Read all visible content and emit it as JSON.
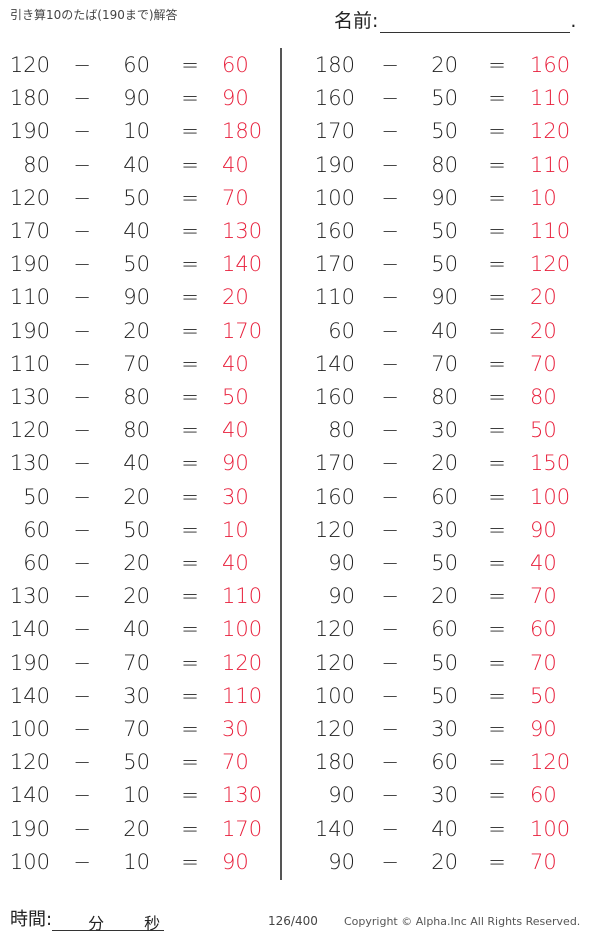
{
  "header": {
    "title": "引き算10のたば(190まで)解答",
    "name_label": "名前:",
    "name_end": "."
  },
  "operator": "−",
  "equals": "=",
  "colors": {
    "answer": "#e8203c",
    "text": "#222222"
  },
  "left": [
    [
      "120",
      "60",
      "60"
    ],
    [
      "180",
      "90",
      "90"
    ],
    [
      "190",
      "10",
      "180"
    ],
    [
      "80",
      "40",
      "40"
    ],
    [
      "120",
      "50",
      "70"
    ],
    [
      "170",
      "40",
      "130"
    ],
    [
      "190",
      "50",
      "140"
    ],
    [
      "110",
      "90",
      "20"
    ],
    [
      "190",
      "20",
      "170"
    ],
    [
      "110",
      "70",
      "40"
    ],
    [
      "130",
      "80",
      "50"
    ],
    [
      "120",
      "80",
      "40"
    ],
    [
      "130",
      "40",
      "90"
    ],
    [
      "50",
      "20",
      "30"
    ],
    [
      "60",
      "50",
      "10"
    ],
    [
      "60",
      "20",
      "40"
    ],
    [
      "130",
      "20",
      "110"
    ],
    [
      "140",
      "40",
      "100"
    ],
    [
      "190",
      "70",
      "120"
    ],
    [
      "140",
      "30",
      "110"
    ],
    [
      "100",
      "70",
      "30"
    ],
    [
      "120",
      "50",
      "70"
    ],
    [
      "140",
      "10",
      "130"
    ],
    [
      "190",
      "20",
      "170"
    ],
    [
      "100",
      "10",
      "90"
    ]
  ],
  "right": [
    [
      "180",
      "20",
      "160"
    ],
    [
      "160",
      "50",
      "110"
    ],
    [
      "170",
      "50",
      "120"
    ],
    [
      "190",
      "80",
      "110"
    ],
    [
      "100",
      "90",
      "10"
    ],
    [
      "160",
      "50",
      "110"
    ],
    [
      "170",
      "50",
      "120"
    ],
    [
      "110",
      "90",
      "20"
    ],
    [
      "60",
      "40",
      "20"
    ],
    [
      "140",
      "70",
      "70"
    ],
    [
      "160",
      "80",
      "80"
    ],
    [
      "80",
      "30",
      "50"
    ],
    [
      "170",
      "20",
      "150"
    ],
    [
      "160",
      "60",
      "100"
    ],
    [
      "120",
      "30",
      "90"
    ],
    [
      "90",
      "50",
      "40"
    ],
    [
      "90",
      "20",
      "70"
    ],
    [
      "120",
      "60",
      "60"
    ],
    [
      "120",
      "50",
      "70"
    ],
    [
      "100",
      "50",
      "50"
    ],
    [
      "120",
      "30",
      "90"
    ],
    [
      "180",
      "60",
      "120"
    ],
    [
      "90",
      "30",
      "60"
    ],
    [
      "140",
      "40",
      "100"
    ],
    [
      "90",
      "20",
      "70"
    ]
  ],
  "footer": {
    "time_label": "時間:",
    "minutes": "分",
    "seconds": "秒",
    "page": "126/400",
    "copyright": "Copyright ©  Alpha.Inc All Rights Reserved."
  }
}
